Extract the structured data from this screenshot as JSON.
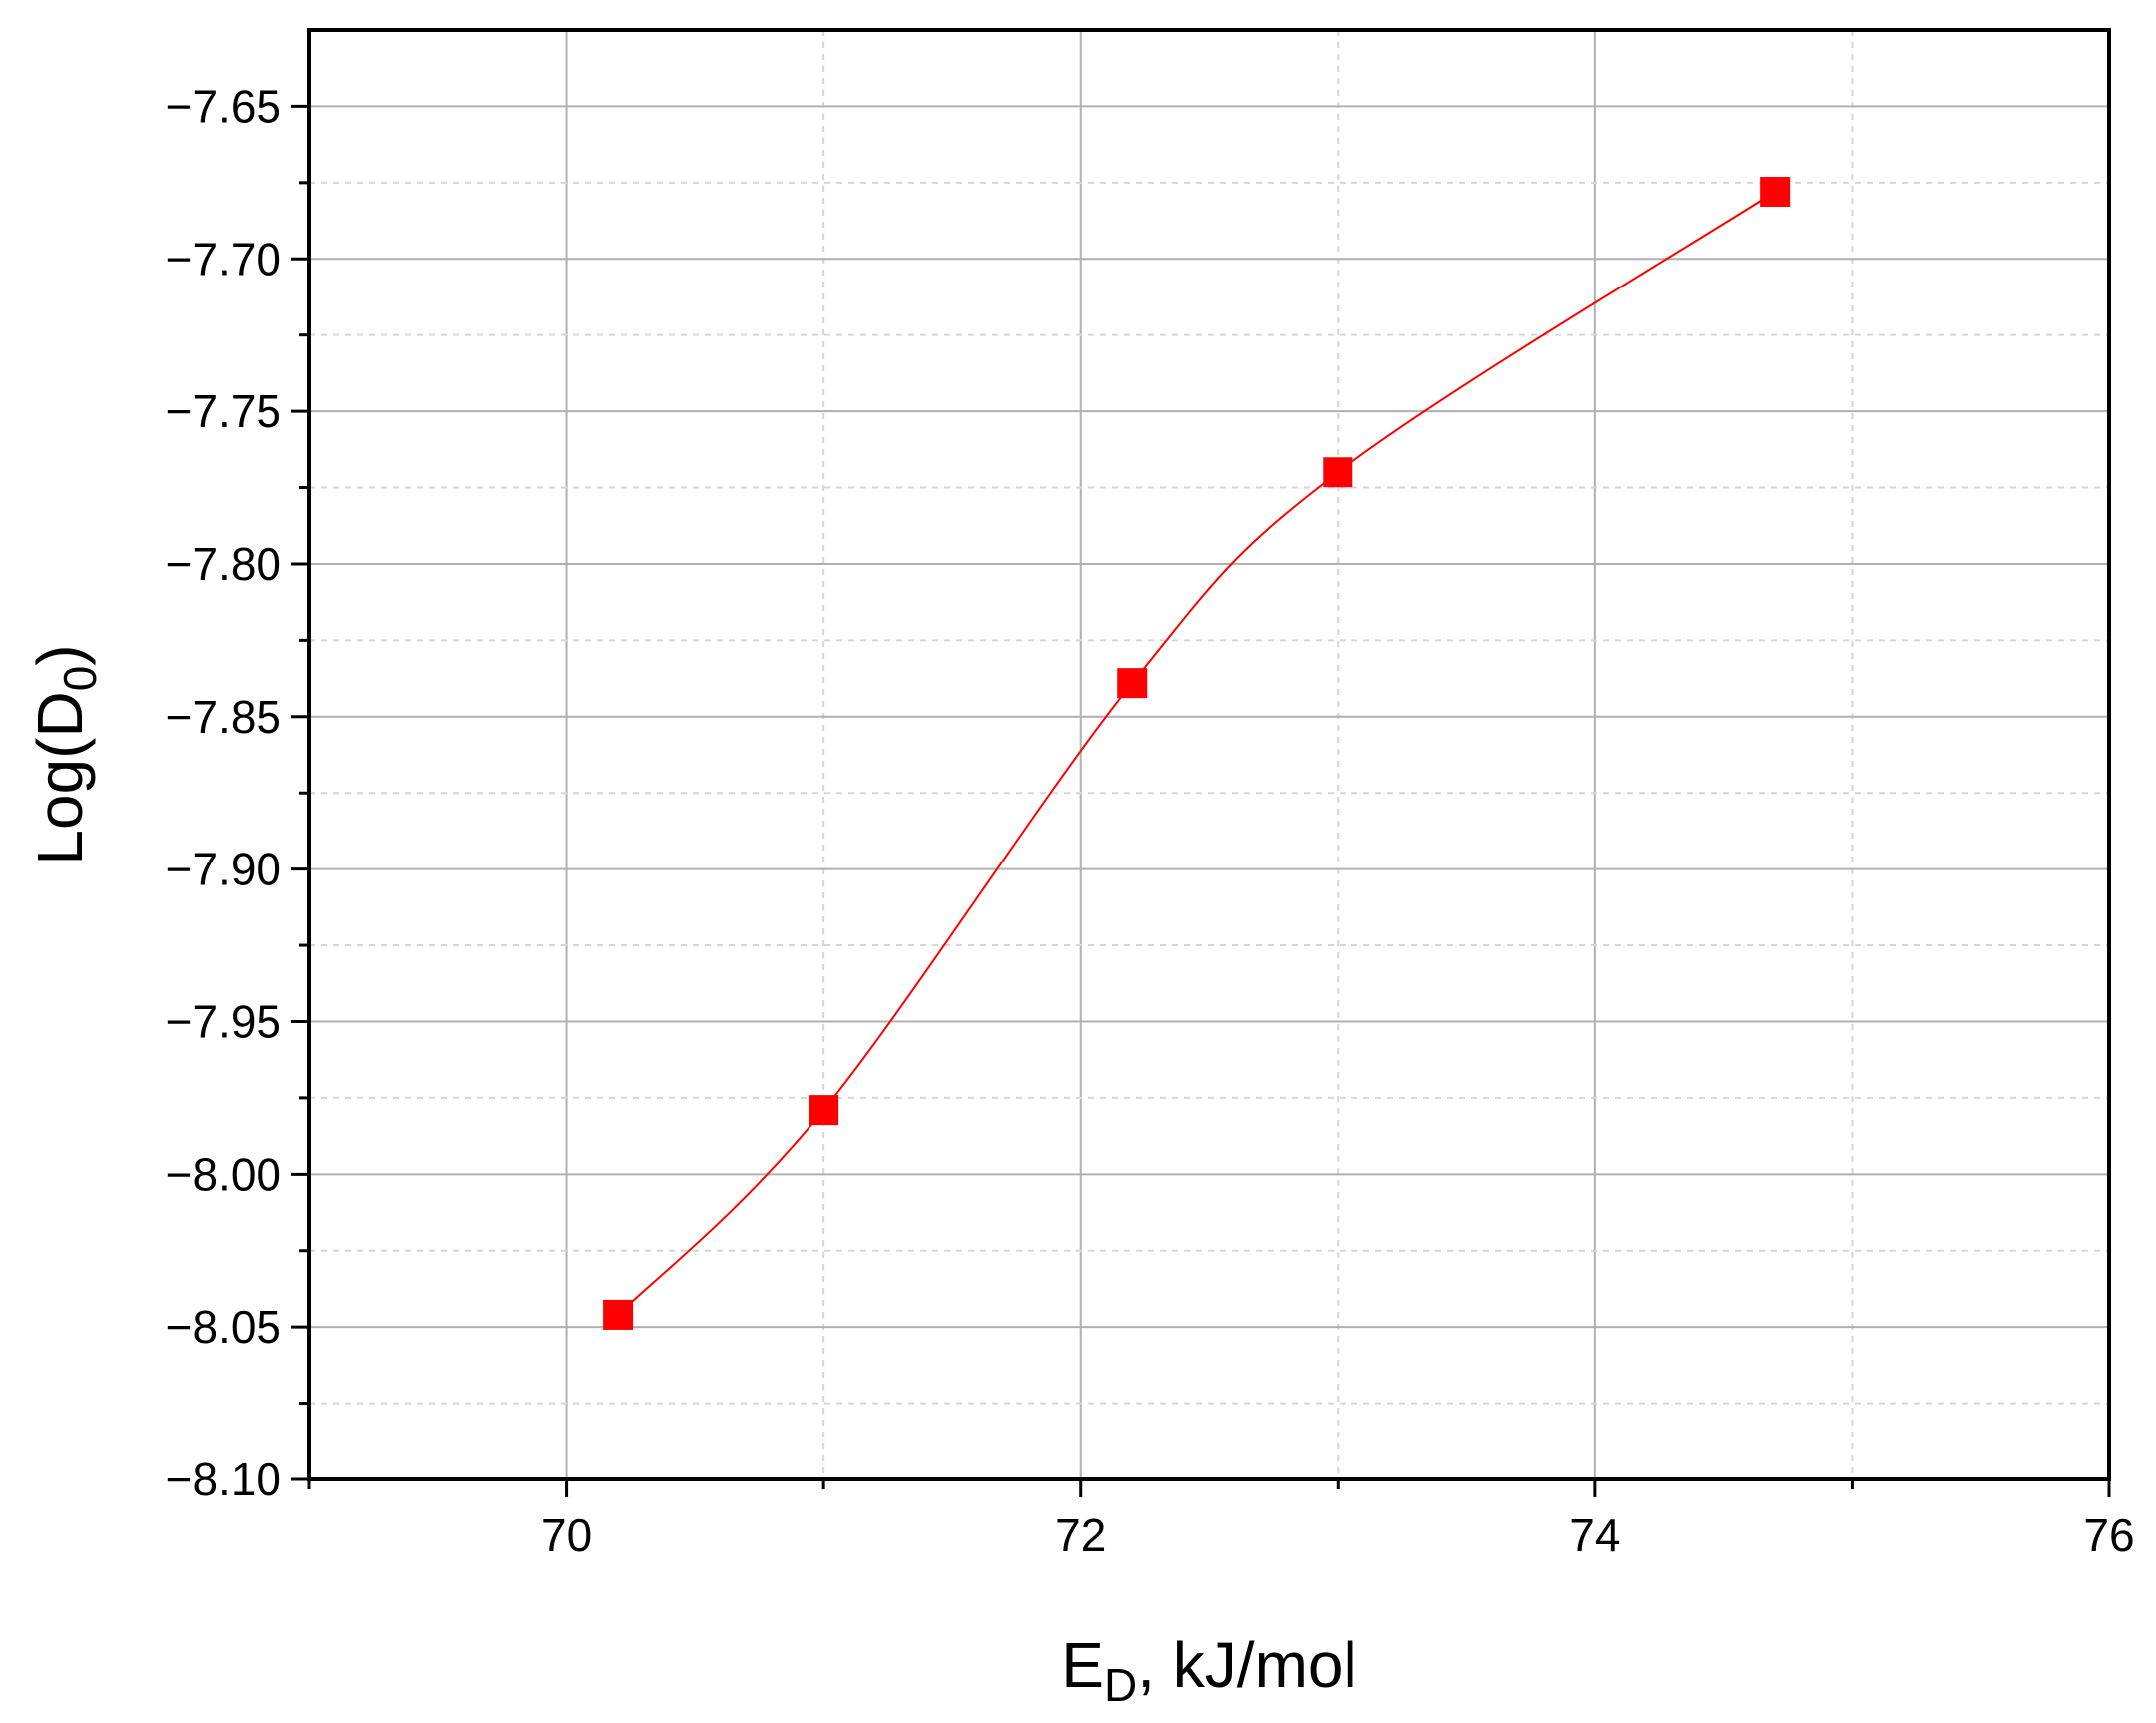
{
  "chart_data": {
    "type": "line",
    "xlabel_main": "E",
    "xlabel_sub": "D",
    "xlabel_rest": ", kJ/mol",
    "ylabel_main": "Log(D",
    "ylabel_sub": "0",
    "ylabel_rest": ")",
    "xlim": [
      69,
      76
    ],
    "ylim": [
      -8.1,
      -7.625
    ],
    "xticks": [
      70,
      72,
      74,
      76
    ],
    "xtick_labels": [
      "70",
      "72",
      "74",
      "76"
    ],
    "yticks": [
      -7.65,
      -7.7,
      -7.75,
      -7.8,
      -7.85,
      -7.9,
      -7.95,
      -8.0,
      -8.05,
      -8.1
    ],
    "ytick_labels": [
      "−7.65",
      "−7.70",
      "−7.75",
      "−7.80",
      "−7.85",
      "−7.90",
      "−7.95",
      "−8.00",
      "−8.05",
      "−8.10"
    ],
    "grid": true,
    "series": [
      {
        "x": [
          70.2,
          71.0,
          72.2,
          73.0,
          74.7
        ],
        "y": [
          -8.046,
          -7.979,
          -7.839,
          -7.77,
          -7.678
        ],
        "marker": "square",
        "color": "#ff0000",
        "line": "smooth"
      }
    ]
  }
}
